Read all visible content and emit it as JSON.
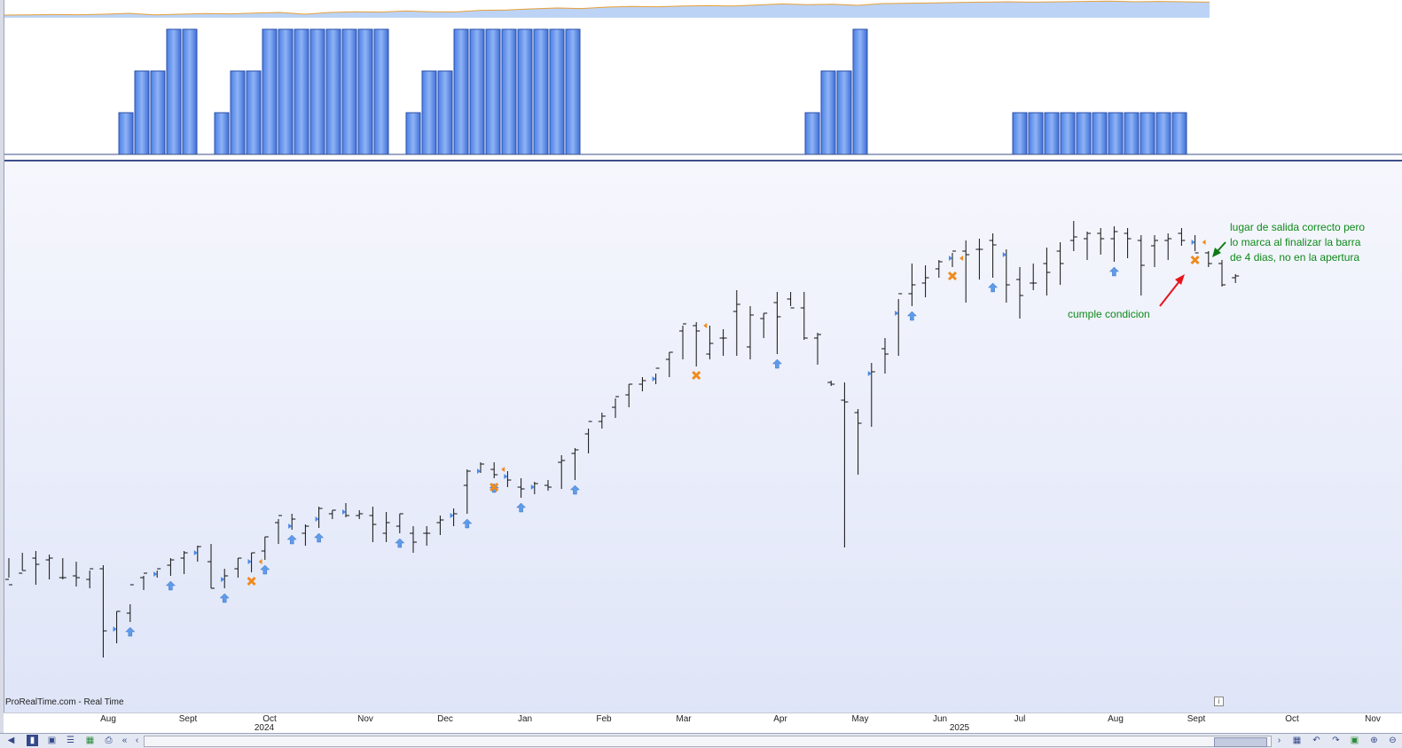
{
  "chart_data": {
    "type": "bar",
    "x_axis": {
      "months": [
        "Aug",
        "Sept",
        "Oct",
        "Nov",
        "Dec",
        "Jan",
        "Feb",
        "Mar",
        "Apr",
        "May",
        "Jun",
        "Jul",
        "Aug",
        "Sept",
        "Oct",
        "Nov"
      ],
      "years": [
        "2024",
        "2025"
      ]
    },
    "credit": "ProRealTime.com - Real Time",
    "annotations": {
      "cumple": "cumple condicion",
      "salida": [
        "lugar de salida correcto pero",
        "lo marca al finalizar la barra",
        "de 4 dias, no en la apertura"
      ]
    },
    "overview_series": [
      0.15,
      0.16,
      0.18,
      0.17,
      0.2,
      0.25,
      0.16,
      0.2,
      0.24,
      0.22,
      0.26,
      0.3,
      0.2,
      0.3,
      0.34,
      0.32,
      0.38,
      0.34,
      0.33,
      0.42,
      0.44,
      0.5,
      0.55,
      0.52,
      0.6,
      0.64,
      0.62,
      0.66,
      0.68,
      0.66,
      0.72,
      0.78,
      0.74,
      0.76,
      0.7,
      0.8,
      0.82,
      0.84,
      0.86,
      0.88,
      0.9,
      0.88,
      0.9,
      0.92,
      0.94,
      0.9,
      0.92,
      0.9,
      0.88
    ],
    "indicator_bars": [
      0,
      0,
      0,
      0,
      0,
      0,
      0,
      1,
      2,
      2,
      3,
      3,
      0,
      1,
      2,
      2,
      3,
      3,
      3,
      3,
      3,
      3,
      3,
      3,
      0,
      1,
      2,
      2,
      3,
      3,
      3,
      3,
      3,
      3,
      3,
      3,
      0,
      0,
      0,
      0,
      0,
      0,
      0,
      0,
      0,
      0,
      0,
      0,
      0,
      0,
      1,
      2,
      2,
      3,
      0,
      0,
      0,
      0,
      0,
      0,
      0,
      0,
      0,
      1,
      1,
      1,
      1,
      1,
      1,
      1,
      1,
      1,
      1,
      1,
      0
    ],
    "price_bars": [
      [
        628,
        650,
        652,
        658
      ],
      [
        622,
        642,
        645,
        642
      ],
      [
        620,
        658,
        628,
        635
      ],
      [
        624,
        652,
        630,
        628
      ],
      [
        628,
        652,
        650,
        650
      ],
      [
        632,
        660,
        648,
        650
      ],
      [
        642,
        662,
        652,
        640
      ],
      [
        636,
        740,
        640,
        710
      ],
      [
        688,
        724,
        708,
        688
      ],
      [
        680,
        700,
        690,
        658
      ],
      [
        648,
        664,
        650,
        645
      ],
      [
        642,
        650,
        646,
        640
      ],
      [
        628,
        648,
        636,
        630
      ],
      [
        620,
        646,
        628,
        622
      ],
      [
        614,
        632,
        622,
        615
      ],
      [
        612,
        662,
        632,
        662
      ],
      [
        640,
        662,
        652,
        648
      ],
      [
        628,
        650,
        640,
        628
      ],
      [
        622,
        644,
        632,
        622
      ],
      [
        604,
        630,
        620,
        604
      ],
      [
        584,
        612,
        588,
        580
      ],
      [
        578,
        596,
        592,
        584
      ],
      [
        590,
        614,
        600,
        592
      ],
      [
        570,
        594,
        584,
        572
      ],
      [
        574,
        584,
        578,
        574
      ],
      [
        566,
        582,
        576,
        580
      ],
      [
        574,
        584,
        580,
        578
      ],
      [
        570,
        610,
        580,
        590
      ],
      [
        576,
        610,
        600,
        588
      ],
      [
        578,
        600,
        592,
        578
      ],
      [
        592,
        622,
        600,
        610
      ],
      [
        592,
        614,
        600,
        600
      ],
      [
        580,
        602,
        588,
        585
      ],
      [
        572,
        592,
        580,
        578
      ],
      [
        528,
        578,
        546,
        530
      ],
      [
        520,
        532,
        530,
        522
      ],
      [
        520,
        538,
        528,
        534
      ],
      [
        530,
        548,
        536,
        540
      ],
      [
        538,
        560,
        548,
        550
      ],
      [
        542,
        556,
        548,
        544
      ],
      [
        540,
        552,
        546,
        548
      ],
      [
        512,
        550,
        520,
        518
      ],
      [
        504,
        540,
        510,
        506
      ],
      [
        482,
        510,
        488,
        474
      ],
      [
        464,
        482,
        474,
        468
      ],
      [
        448,
        470,
        458,
        446
      ],
      [
        432,
        458,
        444,
        432
      ],
      [
        424,
        440,
        432,
        428
      ],
      [
        420,
        432,
        426,
        414
      ],
      [
        396,
        424,
        404,
        396
      ],
      [
        366,
        404,
        372,
        364
      ],
      [
        362,
        412,
        366,
        372
      ],
      [
        366,
        404,
        398,
        386
      ],
      [
        370,
        400,
        380,
        380
      ],
      [
        326,
        400,
        350,
        342
      ],
      [
        344,
        404,
        390,
        354
      ],
      [
        352,
        380,
        358,
        352
      ],
      [
        328,
        398,
        340,
        356
      ],
      [
        328,
        344,
        336,
        346
      ],
      [
        328,
        382,
        346,
        380
      ],
      [
        374,
        410,
        380,
        376
      ],
      [
        428,
        434,
        430,
        432
      ],
      [
        430,
        616,
        450,
        452
      ],
      [
        460,
        534,
        464,
        476
      ],
      [
        408,
        480,
        420,
        418
      ],
      [
        380,
        420,
        392,
        398
      ],
      [
        336,
        400,
        352,
        330
      ],
      [
        296,
        344,
        330,
        320
      ],
      [
        298,
        334,
        318,
        312
      ],
      [
        292,
        312,
        302,
        294
      ],
      [
        284,
        300,
        290,
        282
      ],
      [
        270,
        340,
        282,
        286
      ],
      [
        268,
        314,
        280,
        280
      ],
      [
        262,
        312,
        270,
        275
      ],
      [
        280,
        340,
        286,
        320
      ],
      [
        300,
        358,
        314,
        332
      ],
      [
        296,
        326,
        318,
        318
      ],
      [
        278,
        332,
        296,
        306
      ],
      [
        272,
        320,
        282,
        296
      ],
      [
        248,
        282,
        270,
        266
      ],
      [
        260,
        292,
        268,
        262
      ],
      [
        256,
        286,
        262,
        268
      ],
      [
        254,
        294,
        268,
        260
      ],
      [
        256,
        290,
        262,
        268
      ],
      [
        264,
        332,
        270,
        298
      ],
      [
        264,
        300,
        276,
        270
      ],
      [
        262,
        292,
        270,
        268
      ],
      [
        256,
        276,
        262,
        270
      ],
      [
        264,
        282,
        272,
        284
      ],
      [
        282,
        300,
        284,
        296
      ],
      [
        292,
        322,
        296,
        320
      ],
      [
        308,
        318,
        312,
        310
      ]
    ],
    "markers": {
      "entry_arrows": [
        9,
        12,
        16,
        19,
        21,
        23,
        29,
        34,
        36,
        38,
        42,
        57,
        67,
        73,
        82
      ],
      "exit_crosses": [
        18,
        36,
        51,
        70,
        88
      ],
      "buy_flags": [
        8,
        11,
        14,
        16,
        18,
        21,
        23,
        25,
        33,
        35,
        37,
        39,
        48,
        64,
        66,
        70,
        74,
        88
      ]
    }
  }
}
